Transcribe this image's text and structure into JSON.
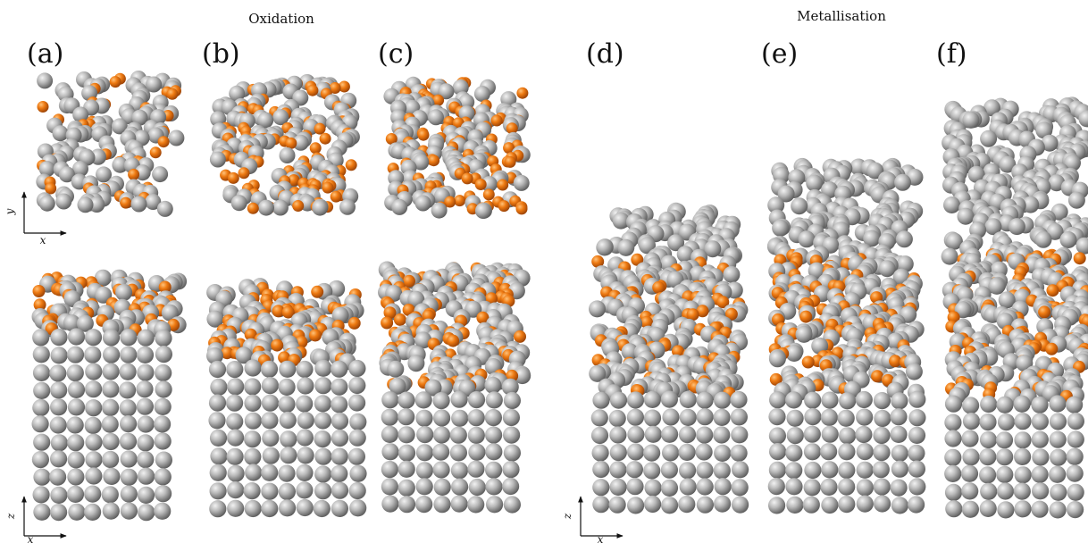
{
  "section_titles": [
    "Oxidation",
    "Metallisation"
  ],
  "panel_labels": [
    "(a)",
    "(b)",
    "(c)",
    "(d)",
    "(e)",
    "(f)"
  ],
  "axis_labels": {
    "top_view": {
      "horizontal": "x",
      "vertical": "y"
    },
    "side_view_oxidation": {
      "horizontal": "x",
      "vertical": "z"
    },
    "side_view_metallisation": {
      "horizontal": "x",
      "vertical": "z"
    }
  },
  "colors": {
    "metal_atom": "#a7a7a7",
    "oxygen_atom": "#ee7a12",
    "background": "#ffffff"
  }
}
